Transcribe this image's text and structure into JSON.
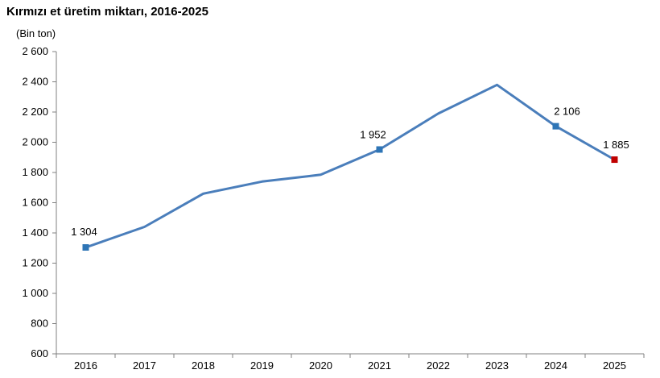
{
  "chart_data": {
    "type": "line",
    "title": "Kırmızı et üretim miktarı, 2016-2025",
    "unit_label": "(Bin ton)",
    "xlabel": "",
    "ylabel": "",
    "categories": [
      "2016",
      "2017",
      "2018",
      "2019",
      "2020",
      "2021",
      "2022",
      "2023",
      "2024",
      "2025"
    ],
    "series": [
      {
        "values": [
          1304,
          1440,
          1660,
          1740,
          1785,
          1952,
          2190,
          2380,
          2106,
          1885
        ]
      }
    ],
    "ylim": [
      600,
      2600
    ],
    "yticks": [
      600,
      800,
      1000,
      1200,
      1400,
      1600,
      1800,
      2000,
      2200,
      2400,
      2600
    ],
    "ytick_labels": [
      "600",
      "800",
      "1 000",
      "1 200",
      "1 400",
      "1 600",
      "1 800",
      "2 000",
      "2 200",
      "2 400",
      "2 600"
    ],
    "data_labels": [
      {
        "category": "2016",
        "text": "1 304"
      },
      {
        "category": "2021",
        "text": "1 952"
      },
      {
        "category": "2024",
        "text": "2 106"
      },
      {
        "category": "2025",
        "text": "1 885"
      }
    ],
    "line_color": "#4A7EBB",
    "marker_color": "#2E75B6",
    "highlight_marker_color": "#C00000",
    "highlight_category": "2025",
    "grid": false,
    "legend": "none"
  }
}
